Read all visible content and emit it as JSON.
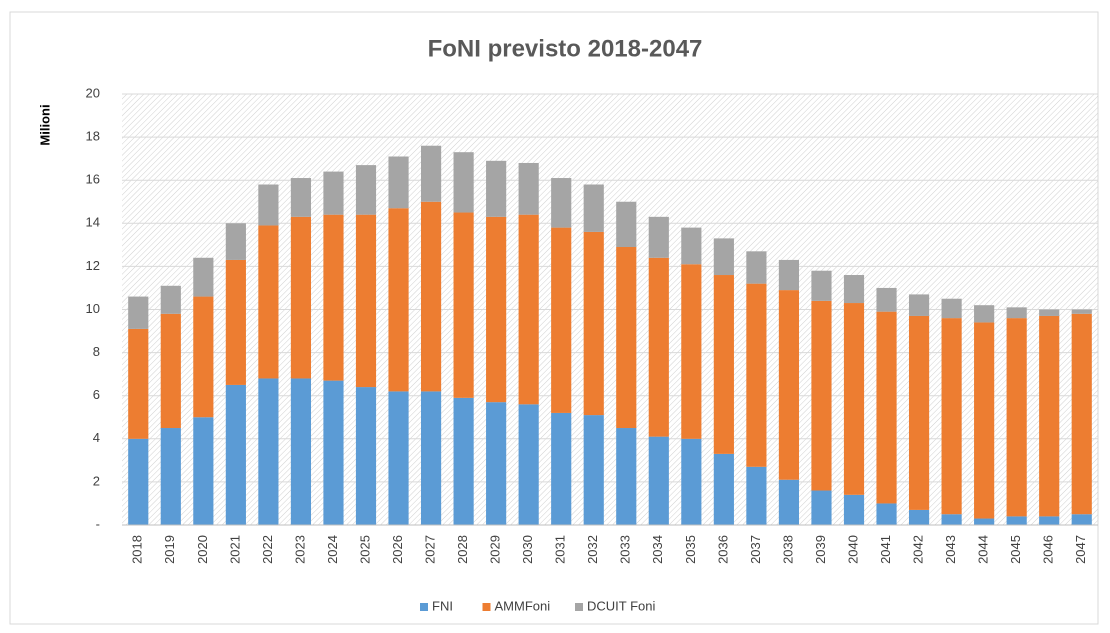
{
  "chart_data": {
    "type": "bar",
    "stacked": true,
    "title": "FoNI previsto 2018-2047",
    "y_label": "Milioni",
    "categories": [
      "2018",
      "2019",
      "2020",
      "2021",
      "2022",
      "2023",
      "2024",
      "2025",
      "2026",
      "2027",
      "2028",
      "2029",
      "2030",
      "2031",
      "2032",
      "2033",
      "2034",
      "2035",
      "2036",
      "2037",
      "2038",
      "2039",
      "2040",
      "2041",
      "2042",
      "2043",
      "2044",
      "2045",
      "2046",
      "2047"
    ],
    "series": [
      {
        "name": "FNI",
        "color": "#5b9bd5",
        "values": [
          4.0,
          4.5,
          5.0,
          6.5,
          6.8,
          6.8,
          6.7,
          6.4,
          6.2,
          6.2,
          5.9,
          5.7,
          5.6,
          5.2,
          5.1,
          4.5,
          4.1,
          4.0,
          3.3,
          2.7,
          2.1,
          1.6,
          1.4,
          1.0,
          0.7,
          0.5,
          0.3,
          0.4,
          0.4,
          0.5
        ]
      },
      {
        "name": "AMMFoni",
        "color": "#ed7d31",
        "values": [
          5.1,
          5.3,
          5.6,
          5.8,
          7.1,
          7.5,
          7.7,
          8.0,
          8.5,
          8.8,
          8.6,
          8.6,
          8.8,
          8.6,
          8.5,
          8.4,
          8.3,
          8.1,
          8.3,
          8.5,
          8.8,
          8.8,
          8.9,
          8.9,
          9.0,
          9.1,
          9.1,
          9.2,
          9.3,
          9.3
        ]
      },
      {
        "name": "DCUIT Foni",
        "color": "#a5a5a5",
        "values": [
          1.5,
          1.3,
          1.8,
          1.7,
          1.9,
          1.8,
          2.0,
          2.3,
          2.4,
          2.6,
          2.8,
          2.6,
          2.4,
          2.3,
          2.2,
          2.1,
          1.9,
          1.7,
          1.7,
          1.5,
          1.4,
          1.4,
          1.3,
          1.1,
          1.0,
          0.9,
          0.8,
          0.5,
          0.3,
          0.2
        ]
      }
    ],
    "ylim": [
      0,
      20
    ],
    "yticks": [
      {
        "value": 0,
        "label": "-"
      },
      2,
      4,
      6,
      8,
      10,
      12,
      14,
      16,
      18,
      20
    ],
    "grid": true,
    "legend": "bottom"
  }
}
